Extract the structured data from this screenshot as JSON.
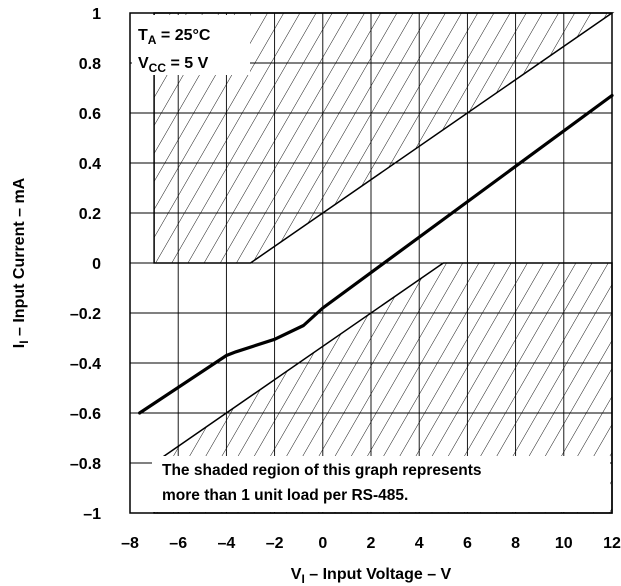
{
  "chart_data": {
    "type": "line",
    "title": "",
    "xlabel": {
      "main": "V",
      "sub": "I",
      "rest": " – Input Voltage – V"
    },
    "ylabel": {
      "main": "I",
      "sub": "I",
      "rest": " – Input Current – mA"
    },
    "xlim": [
      -8,
      12
    ],
    "ylim": [
      -1,
      1
    ],
    "x_ticks": [
      "–8",
      "–6",
      "–4",
      "–2",
      "0",
      "2",
      "4",
      "6",
      "8",
      "10",
      "12"
    ],
    "y_ticks": [
      "1",
      "0.8",
      "0.6",
      "0.4",
      "0.2",
      "0",
      "–0.2",
      "–0.4",
      "–0.6",
      "–0.8",
      "–1"
    ],
    "grid": true,
    "conditions": [
      {
        "main": "T",
        "sub": "A",
        "rest": " = 25°C"
      },
      {
        "main": "V",
        "sub": "CC",
        "rest": " = 5 V"
      }
    ],
    "note_lines": [
      "The shaded region of this graph represents",
      "more than 1 unit load per RS-485."
    ],
    "series": [
      {
        "x": [
          -7.6,
          -4.0,
          -3.6,
          -2.0,
          -0.8,
          0,
          12
        ],
        "y": [
          -0.6,
          -0.37,
          -0.355,
          -0.305,
          -0.25,
          -0.18,
          0.67
        ]
      }
    ],
    "shaded_regions": [
      {
        "x": [
          -7,
          -7,
          12,
          -3
        ],
        "y": [
          0,
          1,
          1,
          0
        ]
      },
      {
        "x": [
          -7,
          5,
          12,
          12,
          -7
        ],
        "y": [
          -0.8,
          0,
          0,
          -1,
          -1
        ]
      }
    ]
  }
}
